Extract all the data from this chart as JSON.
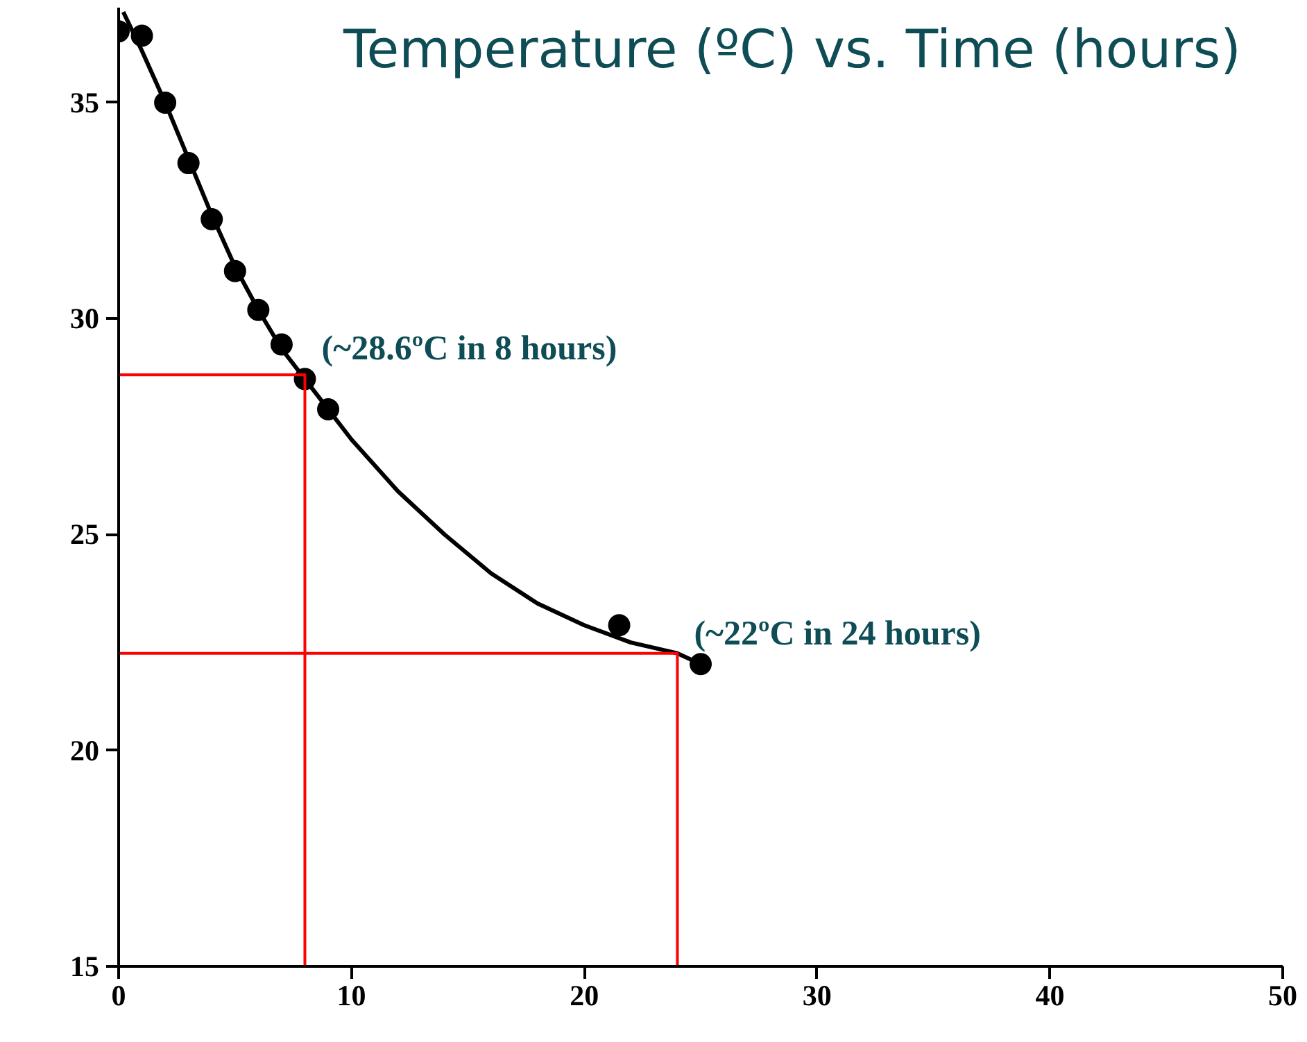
{
  "chart_data": {
    "type": "scatter",
    "title": "Temperature (ºC) vs. Time (hours)",
    "x": [
      0,
      1,
      2,
      3,
      4,
      5,
      6,
      7,
      8,
      9,
      21.5,
      25
    ],
    "xlim": [
      0,
      50
    ],
    "xticks": [
      0,
      10,
      20,
      30,
      40,
      50
    ],
    "ylim": [
      15,
      37.2
    ],
    "yticks": [
      15,
      20,
      25,
      30,
      35
    ],
    "grid": false,
    "marker": "circle",
    "series": [
      {
        "color": "#000000",
        "values": [
          36.65,
          36.55,
          35.0,
          33.6,
          32.3,
          31.1,
          30.2,
          29.4,
          28.6,
          27.9,
          22.9,
          22.0
        ]
      },
      {
        "type": "line",
        "marker": "none",
        "color": "#000000",
        "x": [
          0.2,
          1,
          2,
          3,
          4,
          5,
          6,
          7,
          8,
          9,
          10,
          12,
          14,
          16,
          18,
          20,
          22,
          24,
          25
        ],
        "values": [
          37.1,
          36.2,
          35.0,
          33.7,
          32.4,
          31.2,
          30.2,
          29.3,
          28.6,
          27.9,
          27.2,
          26.0,
          25.0,
          24.1,
          23.4,
          22.9,
          22.5,
          22.25,
          22.0
        ]
      },
      {
        "type": "line",
        "marker": "none",
        "color": "#ff0000",
        "x": [
          0,
          8,
          8
        ],
        "values": [
          28.7,
          28.7,
          15
        ]
      },
      {
        "type": "line",
        "marker": "none",
        "color": "#ff0000",
        "x": [
          0,
          24,
          24
        ],
        "values": [
          22.25,
          22.25,
          15
        ]
      }
    ],
    "annotations": [
      {
        "text": "(~28.6ºC in 8 hours)",
        "x": 8,
        "y": 28.6
      },
      {
        "text": "(~22ºC in 24 hours)",
        "x": 24,
        "y": 22
      }
    ]
  }
}
